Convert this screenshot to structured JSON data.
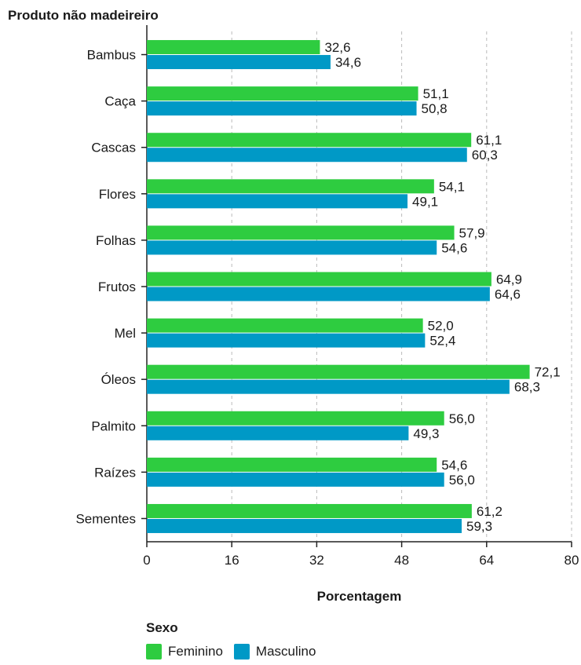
{
  "chart_data": {
    "type": "bar",
    "orientation": "horizontal",
    "ylabel": "Produto não madeireiro",
    "xlabel": "Porcentagem",
    "categories": [
      "Bambus",
      "Caça",
      "Cascas",
      "Flores",
      "Folhas",
      "Frutos",
      "Mel",
      "Óleos",
      "Palmito",
      "Raízes",
      "Sementes"
    ],
    "series": [
      {
        "name": "Feminino",
        "color": "#2ecc40",
        "values": [
          32.6,
          51.1,
          61.1,
          54.1,
          57.9,
          64.9,
          52.0,
          72.1,
          56.0,
          54.6,
          61.2
        ],
        "labels": [
          "32,6",
          "51,1",
          "61,1",
          "54,1",
          "57,9",
          "64,9",
          "52,0",
          "72,1",
          "56,0",
          "54,6",
          "61,2"
        ]
      },
      {
        "name": "Masculino",
        "color": "#0099c6",
        "values": [
          34.6,
          50.8,
          60.3,
          49.1,
          54.6,
          64.6,
          52.4,
          68.3,
          49.3,
          56.0,
          59.3
        ],
        "labels": [
          "34,6",
          "50,8",
          "60,3",
          "49,1",
          "54,6",
          "64,6",
          "52,4",
          "68,3",
          "49,3",
          "56,0",
          "59,3"
        ]
      }
    ],
    "xlim": [
      0,
      80
    ],
    "xticks": [
      0,
      16,
      32,
      48,
      64,
      80
    ],
    "xtick_labels": [
      "0",
      "16",
      "32",
      "48",
      "64",
      "80"
    ],
    "grid": "vertical dashed",
    "legend": {
      "title": "Sexo",
      "placement": "bottom-left"
    }
  }
}
